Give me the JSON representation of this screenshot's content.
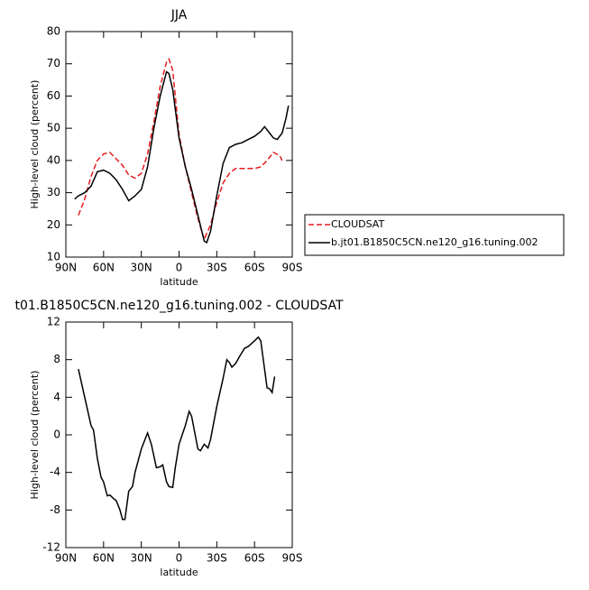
{
  "chart_data": [
    {
      "type": "line",
      "title": "JJA",
      "xlabel": "latitude",
      "ylabel": "High-level cloud (percent)",
      "xlim": [
        90,
        -90
      ],
      "ylim": [
        10,
        80
      ],
      "xticks": [
        {
          "value": 90,
          "label": "90N"
        },
        {
          "value": 60,
          "label": "60N"
        },
        {
          "value": 30,
          "label": "30N"
        },
        0,
        {
          "value": -30,
          "label": "30S"
        },
        {
          "value": -60,
          "label": "60S"
        },
        {
          "value": -90,
          "label": "90S"
        }
      ],
      "yticks": [
        10,
        20,
        30,
        40,
        50,
        60,
        70,
        80
      ],
      "series": [
        {
          "name": "CLOUDSAT",
          "color": "#e41a1c",
          "style": "dashed",
          "x": [
            80,
            75,
            70,
            65,
            60,
            55,
            50,
            45,
            40,
            35,
            30,
            25,
            20,
            15,
            10,
            8,
            5,
            0,
            -5,
            -10,
            -15,
            -20,
            -25,
            -30,
            -35,
            -40,
            -45,
            -50,
            -55,
            -60,
            -65,
            -70,
            -75,
            -80,
            -82
          ],
          "values": [
            23,
            28,
            35,
            40,
            42,
            42.5,
            40.5,
            38.5,
            35.5,
            34.5,
            36,
            42,
            52,
            63,
            70.5,
            71.5,
            68,
            48,
            38,
            30,
            22,
            15.5,
            20,
            27,
            33,
            36,
            37.5,
            37.5,
            37.5,
            37.5,
            38,
            40,
            42.5,
            41.5,
            40
          ]
        },
        {
          "name": "b.jt01.B1850C5CN.ne120_g16.tuning.002",
          "color": "#000000",
          "style": "solid",
          "x": [
            83,
            80,
            75,
            70,
            65,
            60,
            55,
            50,
            45,
            40,
            35,
            30,
            25,
            20,
            15,
            10,
            8,
            5,
            0,
            -5,
            -10,
            -15,
            -20,
            -22,
            -25,
            -30,
            -35,
            -40,
            -45,
            -50,
            -55,
            -60,
            -65,
            -68,
            -72,
            -75,
            -78,
            -82,
            -85,
            -87
          ],
          "values": [
            28,
            29,
            30,
            32,
            36.5,
            37,
            36,
            34,
            31,
            27.5,
            29,
            31,
            38,
            50,
            60,
            67.5,
            67,
            62,
            47,
            38,
            31,
            23,
            15,
            14.5,
            18,
            29,
            39,
            44,
            45,
            45.5,
            46.5,
            47.5,
            49,
            50.5,
            48.5,
            47,
            46.5,
            48.5,
            53,
            57
          ]
        }
      ]
    },
    {
      "type": "line",
      "title": "t01.B1850C5CN.ne120_g16.tuning.002 - CLOUDSAT",
      "xlabel": "latitude",
      "ylabel": "High-level cloud (percent)",
      "xlim": [
        90,
        -90
      ],
      "ylim": [
        -12,
        12
      ],
      "xticks": [
        {
          "value": 90,
          "label": "90N"
        },
        {
          "value": 60,
          "label": "60N"
        },
        {
          "value": 30,
          "label": "30N"
        },
        0,
        {
          "value": -30,
          "label": "30S"
        },
        {
          "value": -60,
          "label": "60S"
        },
        {
          "value": -90,
          "label": "90S"
        }
      ],
      "yticks": [
        -12,
        -8,
        -4,
        0,
        4,
        8,
        12
      ],
      "series": [
        {
          "color": "#000000",
          "style": "solid",
          "x": [
            80,
            75,
            70,
            68,
            65,
            62,
            60,
            57,
            55,
            52,
            50,
            47,
            45,
            43,
            40,
            37,
            35,
            30,
            25,
            22,
            18,
            15,
            13,
            10,
            8,
            5,
            3,
            0,
            -5,
            -8,
            -10,
            -15,
            -17,
            -20,
            -23,
            -25,
            -30,
            -35,
            -38,
            -40,
            -42,
            -45,
            -48,
            -52,
            -55,
            -60,
            -63,
            -65,
            -67,
            -70,
            -72,
            -74,
            -76
          ],
          "values": [
            7,
            4,
            1,
            0.5,
            -2.5,
            -4.5,
            -5,
            -6.5,
            -6.4,
            -6.8,
            -7,
            -8,
            -9,
            -9,
            -6,
            -5.5,
            -4,
            -1.5,
            0.2,
            -1,
            -3.5,
            -3.4,
            -3.2,
            -5,
            -5.5,
            -5.6,
            -3.5,
            -1,
            1,
            2.5,
            2,
            -1.5,
            -1.7,
            -1,
            -1.4,
            -0.5,
            3,
            6,
            8,
            7.7,
            7.2,
            7.6,
            8.3,
            9.2,
            9.4,
            10,
            10.4,
            10,
            8,
            5,
            4.9,
            4.5,
            6.2
          ]
        }
      ]
    }
  ]
}
